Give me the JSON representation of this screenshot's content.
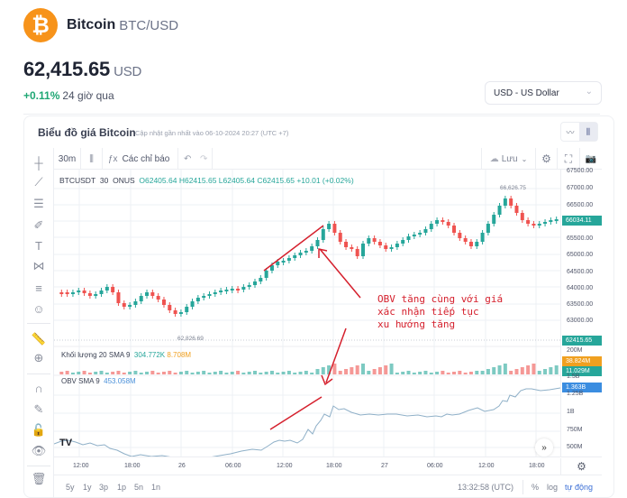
{
  "header": {
    "logo_glyph": "₿",
    "coin_name": "Bitcoin",
    "pair": "BTC/USD",
    "price": "62,415.65",
    "price_currency": "USD",
    "change_pct": "+0.11%",
    "change_period": "24 giờ qua",
    "currency_select": "USD - US Dollar"
  },
  "card": {
    "title": "Biểu đồ giá Bitcoin",
    "subtitle": "Cập nhật gần nhất vào 06-10-2024 20:27 (UTC +7)",
    "chart_type_buttons": [
      "line-chart-icon",
      "candlestick-icon"
    ]
  },
  "toolbar": {
    "interval": "30m",
    "candle_icon": "⫼",
    "indicators_icon": "ƒx",
    "indicators_label": "Các chỉ báo",
    "undo": "↶",
    "redo": "↷",
    "save_label": "Lưu",
    "save_chev": "⌄",
    "settings": "⚙",
    "fullscreen": "⛶",
    "camera": "📷"
  },
  "left_tools": [
    {
      "name": "crosshair-icon",
      "glyph": "┼"
    },
    {
      "name": "trend-line-icon",
      "glyph": "⟋"
    },
    {
      "name": "fib-retracement-icon",
      "glyph": "☰"
    },
    {
      "name": "brush-icon",
      "glyph": "✐"
    },
    {
      "name": "text-icon",
      "glyph": "T"
    },
    {
      "name": "pattern-icon",
      "glyph": "⋈"
    },
    {
      "name": "forecast-icon",
      "glyph": "≡"
    },
    {
      "name": "emoji-icon",
      "glyph": "☺"
    },
    {
      "name": "ruler-icon",
      "glyph": "📏"
    },
    {
      "name": "zoom-in-icon",
      "glyph": "⊕"
    },
    {
      "name": "magnet-icon",
      "glyph": "∩"
    },
    {
      "name": "lock-drawing-icon",
      "glyph": "✎"
    },
    {
      "name": "unlock-icon",
      "glyph": "🔓"
    },
    {
      "name": "eye-icon",
      "glyph": "👁"
    },
    {
      "name": "trash-icon",
      "glyph": "🗑"
    }
  ],
  "legend": {
    "symbol": "BTCUSDT",
    "interval": "30",
    "exchange": "ONUS",
    "open": "O62405.64",
    "high": "H62415.65",
    "low": "L62405.64",
    "close": "C62415.65",
    "change": "+10.01 (+0.02%)",
    "volume_label": "Khối lượng 20 SMA 9",
    "volume_value": "304.772K",
    "volume_sma": "8.708M",
    "obv_label": "OBV SMA 9",
    "obv_value": "453.058M"
  },
  "price_axis": {
    "labels": [
      "67500.00",
      "67000.00",
      "66500.00",
      "65500.00",
      "65000.00",
      "64500.00",
      "64000.00",
      "63500.00",
      "63000.00"
    ],
    "tag_high": "66034.11",
    "tag_last": "62415.65",
    "vol_labels": [
      "200M"
    ],
    "vol_tag_orange": "38.824M",
    "vol_tag_green": "11.029M",
    "obv_labels": [
      "1.5B",
      "1.25B",
      "1B",
      "750M",
      "500M"
    ],
    "obv_tag": "1.363B"
  },
  "markers": {
    "high": "66,626.75",
    "low": "62,826.69"
  },
  "annotation": "OBV tăng cùng với giá\nxác nhận tiếp tục\nxu hướng tăng",
  "time_axis": [
    "12:00",
    "18:00",
    "26",
    "06:00",
    "12:00",
    "18:00",
    "27",
    "06:00",
    "12:00",
    "18:00"
  ],
  "bottom_bar": {
    "ranges": [
      "5y",
      "1y",
      "3p",
      "1p",
      "5n",
      "1n"
    ],
    "clock": "13:32:58 (UTC)",
    "percent": "%",
    "log": "log",
    "auto": "tự động"
  },
  "colors": {
    "up": "#26a69a",
    "down": "#ef5350",
    "obv_line": "#8fb0c8",
    "annotation": "#d5202d",
    "accent": "#f7931a"
  }
}
